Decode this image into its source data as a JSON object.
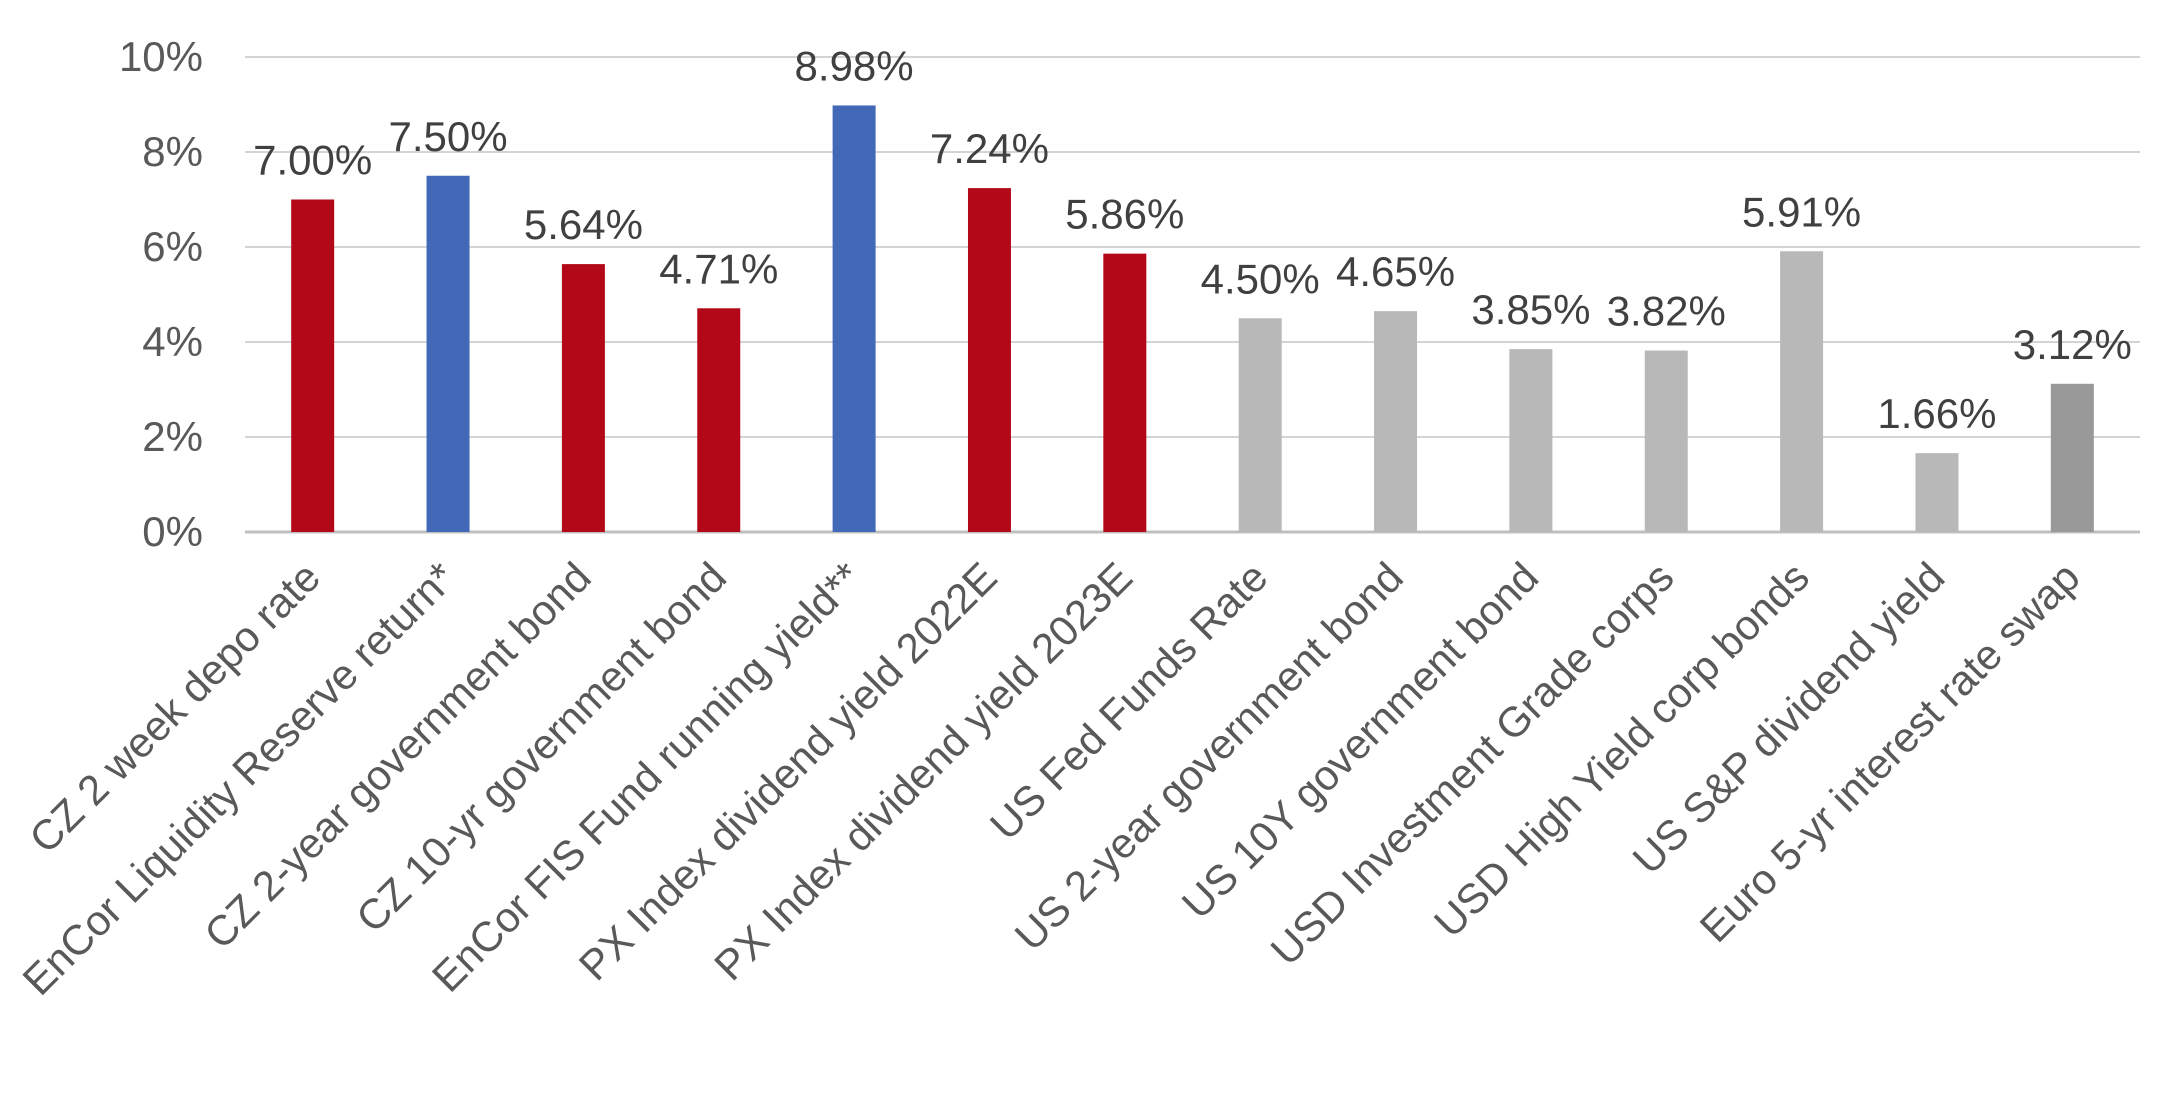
{
  "chart_data": {
    "type": "bar",
    "title": "",
    "xlabel": "",
    "ylabel": "",
    "ylim": [
      0,
      10
    ],
    "yticks": [
      0,
      2,
      4,
      6,
      8,
      10
    ],
    "ytick_labels": [
      "0%",
      "2%",
      "4%",
      "6%",
      "8%",
      "10%"
    ],
    "grid": true,
    "legend": "none",
    "categories": [
      "CZ 2 week depo rate",
      "EnCor Liquidity Reserve return*",
      "CZ 2-year government bond",
      "CZ 10-yr government bond",
      "EnCor FIS Fund running yield**",
      "PX Index dividend yield 2022E",
      "PX Index dividend yield 2023E",
      "US Fed Funds Rate",
      "US 2-year government bond",
      "US 10Y government bond",
      "USD Investment Grade corps",
      "USD High Yield corp bonds",
      "US S&P dividend yield",
      "Euro 5-yr interest rate swap"
    ],
    "values": [
      7.0,
      7.5,
      5.64,
      4.71,
      8.98,
      7.24,
      5.86,
      4.5,
      4.65,
      3.85,
      3.82,
      5.91,
      1.66,
      3.12
    ],
    "value_labels": [
      "7.00%",
      "7.50%",
      "5.64%",
      "4.71%",
      "8.98%",
      "7.24%",
      "5.86%",
      "4.50%",
      "4.65%",
      "3.85%",
      "3.82%",
      "5.91%",
      "1.66%",
      "3.12%"
    ],
    "bar_colors": [
      "#b30818",
      "#4169b8",
      "#b30818",
      "#b30818",
      "#4169b8",
      "#b30818",
      "#b30818",
      "#b8b8b8",
      "#b8b8b8",
      "#b8b8b8",
      "#b8b8b8",
      "#b8b8b8",
      "#b8b8b8",
      "#999999"
    ],
    "gridline_color": "#d4d4d4",
    "axis_color": "#bfbfbf"
  }
}
